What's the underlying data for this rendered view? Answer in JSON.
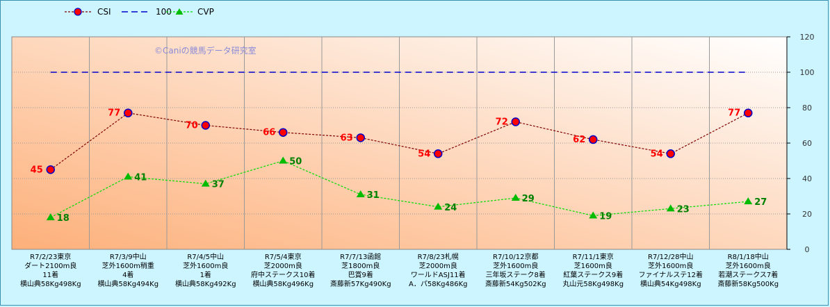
{
  "legend": {
    "csi": "CSI",
    "ref": "100",
    "cvp": "CVP"
  },
  "watermark": "©Caniの競馬データ研究室",
  "colors": {
    "csi_line": "#800000",
    "csi_marker": "#ff0000",
    "csi_marker_edge": "#0000cc",
    "ref_line": "#0000cc",
    "cvp_line": "#00dd00",
    "cvp_marker": "#00bb00",
    "csi_label": "#ff0000",
    "cvp_label": "#008000",
    "plot_bg_from": "#fdb07a",
    "plot_bg_to": "#ffffff"
  },
  "chart_data": {
    "type": "line",
    "title": "",
    "xlabel": "",
    "ylabel": "",
    "ylim": [
      0,
      120
    ],
    "yticks": [
      0,
      20,
      40,
      60,
      80,
      100,
      120
    ],
    "y_axis_side": "right",
    "grid": true,
    "legend_placement": "top-left",
    "categories": [
      [
        "R7/2/23東京",
        "ダート2100m良",
        "11着",
        "横山典58Kg498Kg"
      ],
      [
        "R7/3/9中山",
        "芝外1600m稍重",
        "4着",
        "横山典58Kg494Kg"
      ],
      [
        "R7/4/5中山",
        "芝外1600m良",
        "1着",
        "横山典58Kg492Kg"
      ],
      [
        "R7/5/4東京",
        "芝2000m良",
        "府中ステークス10着",
        "横山典58Kg496Kg"
      ],
      [
        "R7/7/13函館",
        "芝1800m良",
        "巴賞9着",
        "斎藤新57Kg490Kg"
      ],
      [
        "R7/8/23札幌",
        "芝2000m良",
        "ワールドASJ11着",
        "A．パ58Kg486Kg"
      ],
      [
        "R7/10/12京都",
        "芝外1600m良",
        "三年坂ステーク8着",
        "斎藤新54Kg502Kg"
      ],
      [
        "R7/11/1東京",
        "芝1600m良",
        "紅葉ステークス9着",
        "丸山元58Kg498Kg"
      ],
      [
        "R7/12/28中山",
        "芝外1600m良",
        "ファイナルステ12着",
        "横山典54Kg498Kg"
      ],
      [
        "R8/1/18中山",
        "芝外1600m良",
        "若潮ステークス7着",
        "斎藤新58Kg500Kg"
      ]
    ],
    "series": [
      {
        "name": "CSI",
        "values": [
          45,
          77,
          70,
          66,
          63,
          54,
          72,
          62,
          54,
          77
        ]
      },
      {
        "name": "100",
        "values": [
          100,
          100,
          100,
          100,
          100,
          100,
          100,
          100,
          100,
          100
        ]
      },
      {
        "name": "CVP",
        "values": [
          18,
          41,
          37,
          50,
          31,
          24,
          29,
          19,
          23,
          27
        ]
      }
    ]
  }
}
